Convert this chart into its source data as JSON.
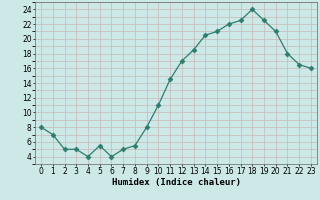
{
  "x": [
    0,
    1,
    2,
    3,
    4,
    5,
    6,
    7,
    8,
    9,
    10,
    11,
    12,
    13,
    14,
    15,
    16,
    17,
    18,
    19,
    20,
    21,
    22,
    23
  ],
  "y": [
    8,
    7,
    5,
    5,
    4,
    5.5,
    4,
    5,
    5.5,
    8,
    11,
    14.5,
    17,
    18.5,
    20.5,
    21,
    22,
    22.5,
    24,
    22.5,
    21,
    18,
    16.5,
    16
  ],
  "line_color": "#2e7d6e",
  "marker": "D",
  "marker_size": 2.5,
  "xlabel": "Humidex (Indice chaleur)",
  "xlim": [
    -0.5,
    23.5
  ],
  "ylim": [
    3,
    25
  ],
  "yticks": [
    4,
    6,
    8,
    10,
    12,
    14,
    16,
    18,
    20,
    22,
    24
  ],
  "xticks": [
    0,
    1,
    2,
    3,
    4,
    5,
    6,
    7,
    8,
    9,
    10,
    11,
    12,
    13,
    14,
    15,
    16,
    17,
    18,
    19,
    20,
    21,
    22,
    23
  ],
  "bg_color": "#cce9e7",
  "grid_major_color": "#c8b8b8",
  "grid_minor_color": "#c8b8b8",
  "xlabel_fontsize": 6.5,
  "tick_fontsize": 5.5,
  "line_width": 0.9
}
